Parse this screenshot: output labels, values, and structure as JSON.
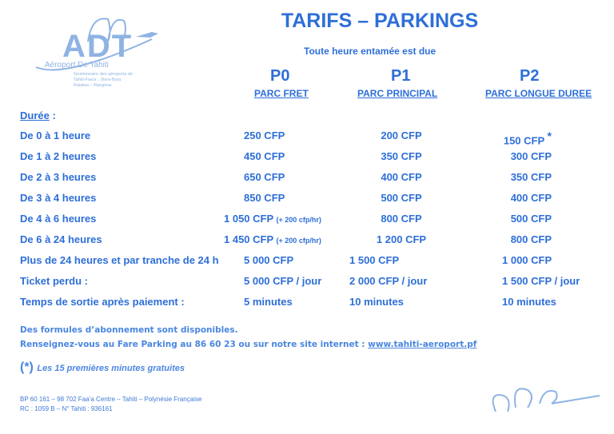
{
  "logo": {
    "brand": "ADT",
    "name": "Aéroport De Tahiti",
    "tagline": [
      "Gestionnaire des aéroports de :",
      "Tahiti-Faa'a :: Bora-Bora",
      "Raiatea :: Rangiroa"
    ]
  },
  "title": "TARIFS – PARKINGS",
  "subtitle": "Toute heure entamée est due",
  "columns": [
    {
      "code": "P0",
      "name": "PARC FRET"
    },
    {
      "code": "P1",
      "name": "PARC PRINCIPAL"
    },
    {
      "code": "P2",
      "name": "PARC LONGUE DUREE"
    }
  ],
  "duration_label": "Durée",
  "duration_colon": " :",
  "rows": [
    {
      "label": "De 0 à 1 heure",
      "p0": "250 CFP",
      "p0_note": "",
      "p1": "200 CFP",
      "p2": "150 CFP",
      "p2_mark": "*"
    },
    {
      "label": "De 1 à 2 heures",
      "p0": "450 CFP",
      "p0_note": "",
      "p1": "350 CFP",
      "p2": "300 CFP",
      "p2_mark": ""
    },
    {
      "label": "De 2 à 3 heures",
      "p0": "650 CFP",
      "p0_note": "",
      "p1": "400 CFP",
      "p2": "350 CFP",
      "p2_mark": ""
    },
    {
      "label": "De 3 à 4 heures",
      "p0": "850 CFP",
      "p0_note": "",
      "p1": "500 CFP",
      "p2": "400 CFP",
      "p2_mark": ""
    },
    {
      "label": "De 4 à 6 heures",
      "p0": "1 050 CFP",
      "p0_note": "(+ 200 cfp/hr)",
      "p1": "800 CFP",
      "p2": "500 CFP",
      "p2_mark": ""
    },
    {
      "label": "De 6 à 24 heures",
      "p0": "1 450 CFP",
      "p0_note": "(+ 200 cfp/hr)",
      "p1": "1 200 CFP",
      "p2": "800 CFP",
      "p2_mark": ""
    },
    {
      "label": "Plus de 24 heures et par tranche de 24 h",
      "p0": "5 000 CFP",
      "p0_note": "",
      "p1": "1 500 CFP",
      "p2": "1 000 CFP",
      "p2_mark": ""
    },
    {
      "label": "Ticket perdu :",
      "p0": "5 000 CFP / jour",
      "p0_note": "",
      "p1": "2 000 CFP / jour",
      "p2": "1 500 CFP / jour",
      "p2_mark": ""
    },
    {
      "label": "Temps de sortie après paiement :",
      "p0": "5 minutes",
      "p0_note": "",
      "p1": "10 minutes",
      "p2": "10 minutes",
      "p2_mark": ""
    }
  ],
  "info_line1": "Des formules d’abonnement  sont disponibles.",
  "info_line2": "Renseignez-vous au Fare Parking au 86 60 23 ou sur notre site internet : ",
  "website": "www.tahiti-aeroport.pf",
  "footnote_mark": "(*)",
  "footnote": "Les 15 premières minutes gratuites",
  "address": "BP 60 161 – 98 702 Faa’a Centre – Tahiti – Polynésie Française",
  "registry": "RC : 1059 B – N° Tahiti : 936161",
  "colors": {
    "text": "#2e6fd8",
    "logo": "#8fb3e3"
  }
}
